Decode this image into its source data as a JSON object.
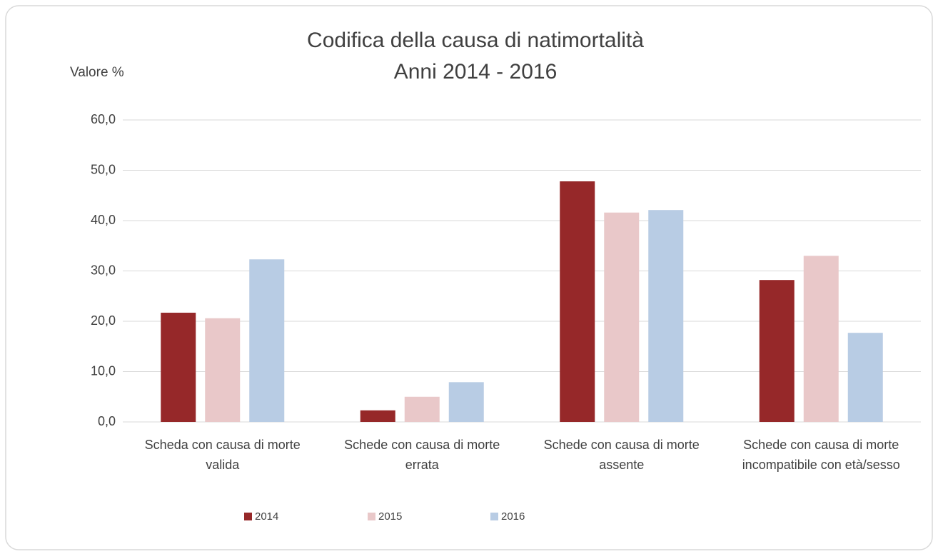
{
  "chart_data": {
    "type": "bar",
    "title": "Codifica della causa di natimortalità",
    "subtitle": "Anni 2014 - 2016",
    "y_label": "Valore %",
    "categories": [
      "Scheda con causa di morte valida",
      "Schede con causa di morte errata",
      "Schede con causa di morte assente",
      "Schede con causa di morte incompatibile con età/sesso"
    ],
    "series": [
      {
        "name": "2014",
        "color": "#962829",
        "values": [
          21.7,
          2.3,
          47.8,
          28.2
        ]
      },
      {
        "name": "2015",
        "color": "#e9c8c9",
        "values": [
          20.6,
          5.0,
          41.6,
          33.0
        ]
      },
      {
        "name": "2016",
        "color": "#b8cce4",
        "values": [
          32.3,
          7.9,
          42.1,
          17.7
        ]
      }
    ],
    "ylim": [
      0,
      60
    ],
    "yticks": [
      {
        "value": 0,
        "label": "0,0"
      },
      {
        "value": 10,
        "label": "10,0"
      },
      {
        "value": 20,
        "label": "20,0"
      },
      {
        "value": 30,
        "label": "30,0"
      },
      {
        "value": 40,
        "label": "40,0"
      },
      {
        "value": 50,
        "label": "50,0"
      },
      {
        "value": 60,
        "label": "60,0"
      }
    ],
    "grid": true,
    "legend": "bottom"
  }
}
